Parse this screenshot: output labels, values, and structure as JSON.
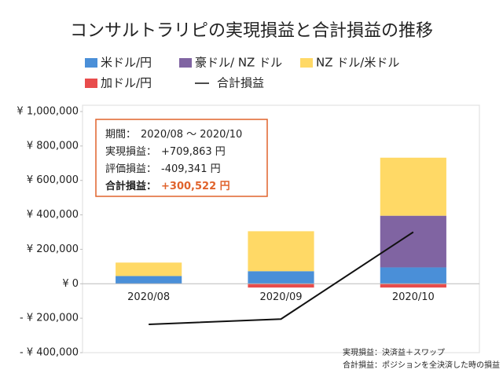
{
  "chart_data": {
    "type": "bar",
    "title": "コンサルトラリピの実現損益と合計損益の推移",
    "categories": [
      "2020/08",
      "2020/09",
      "2020/10"
    ],
    "series": [
      {
        "name": "米ドル/円",
        "type": "bar",
        "color": "#4a8fd8",
        "values": [
          45000,
          73000,
          95000
        ]
      },
      {
        "name": "豪ドル/ NZ ドル",
        "type": "bar",
        "color": "#8064a2",
        "values": [
          0,
          0,
          300000
        ]
      },
      {
        "name": "NZ ドル/米ドル",
        "type": "bar",
        "color": "#ffd966",
        "values": [
          78000,
          232000,
          337000
        ]
      },
      {
        "name": "加ドル/円",
        "type": "bar",
        "color": "#e84c4c",
        "values": [
          0,
          -22000,
          -22000
        ]
      },
      {
        "name": "合計損益",
        "type": "line",
        "color": "#111111",
        "values": [
          -236000,
          -205000,
          300000
        ]
      }
    ],
    "ylim": [
      -400000,
      1000000
    ],
    "yticks": [
      {
        "value": 1000000,
        "label": "¥ 1,000,000"
      },
      {
        "value": 800000,
        "label": "¥ 800,000"
      },
      {
        "value": 600000,
        "label": "¥ 600,000"
      },
      {
        "value": 400000,
        "label": "¥ 400,000"
      },
      {
        "value": 200000,
        "label": "¥ 200,000"
      },
      {
        "value": 0,
        "label": "¥ 0"
      },
      {
        "value": -200000,
        "label": "- ¥ 200,000"
      },
      {
        "value": -400000,
        "label": "- ¥ 400,000"
      }
    ],
    "negative_tick_color": "#e02020",
    "grid": false,
    "annotations": [
      {
        "label": "期間：",
        "value": "2020/08 ～ 2020/10"
      },
      {
        "label": "実現損益：",
        "value": "+709,863 円"
      },
      {
        "label": "評価損益：",
        "value": "-409,341 円"
      },
      {
        "label": "合計損益：",
        "value": "+300,522 円"
      }
    ],
    "annotation_border_color": "#e0632c",
    "highlight_color": "#e0632c",
    "notes": [
      "実現損益：決済益＋スワップ",
      "合計損益：ポジションを全決済した時の損益"
    ]
  }
}
